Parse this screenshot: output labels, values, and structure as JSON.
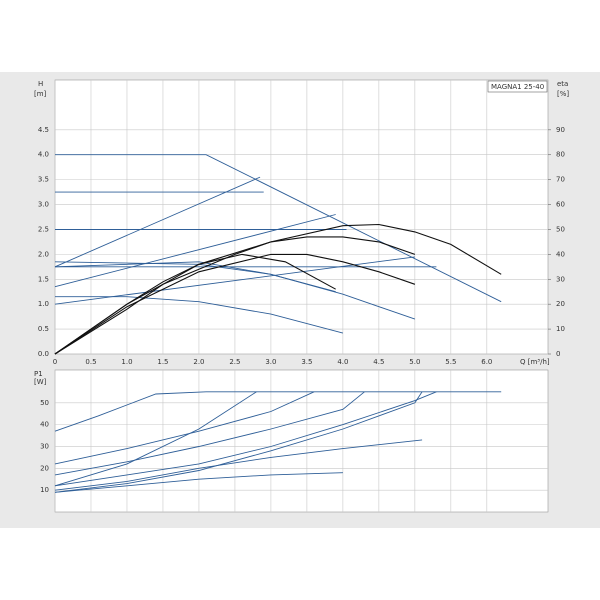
{
  "chart_data": [
    {
      "type": "line",
      "model": "MAGNA1 25-40",
      "ylabel": "H",
      "yunit": "[m]",
      "y2label": "eta",
      "y2unit": "[%]",
      "xlabel": "Q [m³/h]",
      "xlim": [
        0,
        6.85
      ],
      "ylim": [
        0,
        5.5
      ],
      "y2lim": [
        0,
        110
      ],
      "grid": true,
      "xticks": [
        0,
        0.5,
        {
          "value": 1,
          "label": "1.0"
        },
        1.5,
        {
          "value": 2,
          "label": "2.0"
        },
        2.5,
        {
          "value": 3,
          "label": "3.0"
        },
        3.5,
        {
          "value": 4,
          "label": "4.0"
        },
        4.5,
        {
          "value": 5,
          "label": "5.0"
        },
        5.5,
        {
          "value": 6,
          "label": "6.0"
        }
      ],
      "yticks": [
        {
          "value": 0,
          "label": "0.0"
        },
        0.5,
        {
          "value": 1,
          "label": "1.0"
        },
        1.5,
        {
          "value": 2,
          "label": "2.0"
        },
        2.5,
        {
          "value": 3,
          "label": "3.0"
        },
        3.5,
        {
          "value": 4,
          "label": "4.0"
        },
        4.5
      ],
      "y2ticks": [
        0,
        10,
        20,
        30,
        40,
        50,
        60,
        70,
        80,
        90
      ],
      "series": [
        {
          "color": "#2f5f98",
          "x": [
            0,
            2.1,
            6.2
          ],
          "values": [
            4.0,
            4.0,
            1.05
          ]
        },
        {
          "color": "#2f5f98",
          "x": [
            0,
            2.85
          ],
          "values": [
            1.75,
            3.55
          ]
        },
        {
          "color": "#2f5f98",
          "x": [
            0,
            2.9
          ],
          "values": [
            3.25,
            3.25
          ]
        },
        {
          "color": "#2f5f98",
          "x": [
            0,
            4.05
          ],
          "values": [
            2.5,
            2.5
          ]
        },
        {
          "color": "#2f5f98",
          "x": [
            0,
            3.9
          ],
          "values": [
            1.35,
            2.8
          ]
        },
        {
          "color": "#2f5f98",
          "x": [
            0,
            5.3
          ],
          "values": [
            1.75,
            1.75
          ]
        },
        {
          "color": "#2f5f98",
          "x": [
            0,
            5.0
          ],
          "values": [
            1.0,
            1.95
          ]
        },
        {
          "color": "#2f5f98",
          "x": [
            0,
            2,
            3,
            3.9
          ],
          "values": [
            1.85,
            1.8,
            1.6,
            1.25
          ]
        },
        {
          "color": "#2f5f98",
          "x": [
            0,
            2,
            3,
            4,
            5.0
          ],
          "values": [
            1.75,
            1.85,
            1.6,
            1.2,
            0.7
          ]
        },
        {
          "color": "#2f5f98",
          "x": [
            0,
            1,
            2,
            3,
            4
          ],
          "values": [
            1.15,
            1.15,
            1.05,
            0.8,
            0.42
          ]
        },
        {
          "color": "#111111",
          "axis": "y2",
          "x": [
            0,
            0.5,
            1,
            1.5,
            2,
            3,
            4,
            4.5,
            5,
            5.5,
            6.2
          ],
          "values": [
            0,
            10,
            20,
            29,
            36,
            45,
            51.5,
            52,
            49,
            44,
            32
          ]
        },
        {
          "color": "#111111",
          "axis": "y2",
          "x": [
            0,
            0.5,
            1,
            1.5,
            2,
            2.5,
            3,
            3.5,
            4,
            4.5,
            5.0
          ],
          "values": [
            0,
            10,
            20,
            28,
            34,
            40,
            45,
            47,
            47,
            45,
            40
          ]
        },
        {
          "color": "#111111",
          "axis": "y2",
          "x": [
            0,
            1,
            2,
            3,
            3.5,
            4,
            4.5,
            5
          ],
          "values": [
            0,
            19,
            33,
            40,
            40,
            37,
            33,
            28
          ]
        },
        {
          "color": "#111111",
          "axis": "y2",
          "x": [
            0,
            1,
            1.5,
            2,
            2.6,
            3.2,
            3.9
          ],
          "values": [
            0,
            18,
            28,
            36,
            40,
            37,
            26
          ]
        }
      ]
    },
    {
      "type": "line",
      "ylabel": "P1",
      "yunit": "[W]",
      "xlim": [
        0,
        6.85
      ],
      "ylim": [
        0,
        65
      ],
      "grid": true,
      "yticks": [
        10,
        20,
        30,
        40,
        50
      ],
      "series": [
        {
          "color": "#2f5f98",
          "x": [
            0,
            0.6,
            1.4,
            2.1,
            6.2
          ],
          "values": [
            37,
            44,
            54,
            55,
            55
          ]
        },
        {
          "color": "#2f5f98",
          "x": [
            0,
            1,
            2,
            2.8
          ],
          "values": [
            12,
            22,
            38,
            55
          ]
        },
        {
          "color": "#2f5f98",
          "x": [
            0,
            1,
            2,
            3,
            3.6
          ],
          "values": [
            22,
            29,
            37,
            46,
            55
          ]
        },
        {
          "color": "#2f5f98",
          "x": [
            0,
            1,
            2,
            3,
            4,
            4.3
          ],
          "values": [
            17,
            23,
            30,
            38,
            47,
            55
          ]
        },
        {
          "color": "#2f5f98",
          "x": [
            0,
            1,
            2,
            3,
            4,
            5,
            5.3
          ],
          "values": [
            12,
            17,
            22,
            30,
            40,
            51,
            55
          ]
        },
        {
          "color": "#2f5f98",
          "x": [
            0,
            1,
            2,
            3,
            4,
            5,
            5.1
          ],
          "values": [
            9,
            13,
            19,
            28,
            38,
            50,
            55
          ]
        },
        {
          "color": "#2f5f98",
          "x": [
            0,
            1,
            2,
            3,
            4,
            5.1
          ],
          "values": [
            10,
            14,
            20,
            25,
            29,
            33
          ]
        },
        {
          "color": "#2f5f98",
          "x": [
            0,
            1,
            2,
            3,
            4
          ],
          "values": [
            9,
            12,
            15,
            17,
            18
          ]
        }
      ]
    }
  ]
}
